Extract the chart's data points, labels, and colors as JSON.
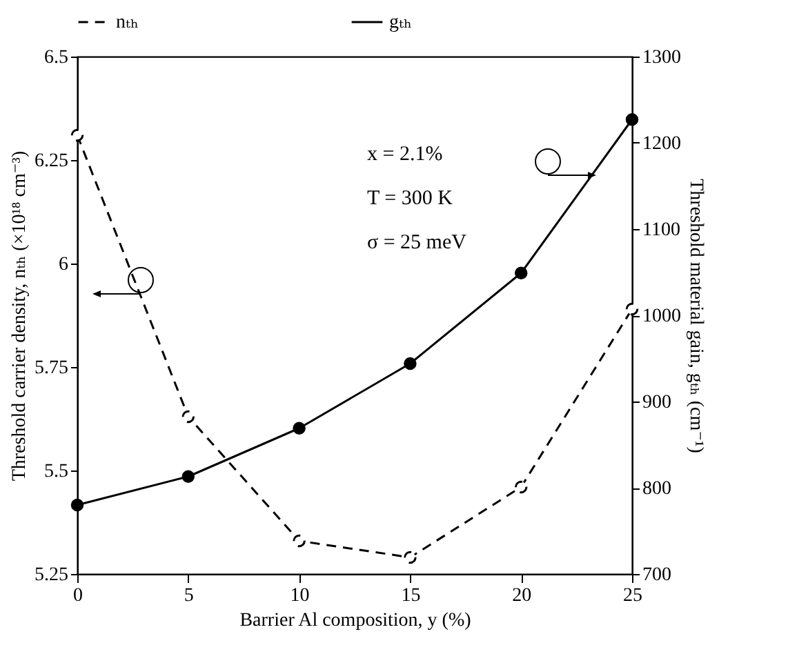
{
  "chart_data": {
    "type": "line",
    "xlabel": "Barrier Al composition, y (%)",
    "ylabel": "Threshold carrier density, nₜₕ (×10¹⁸ cm⁻³)",
    "y2label": "Threshold material gain, gₜₕ (cm⁻¹)",
    "x": [
      0,
      5,
      10,
      15,
      20,
      25
    ],
    "series": [
      {
        "name": "nₜₕ",
        "color": "#000000",
        "line_style": "dashed",
        "values": [
          6.31,
          5.63,
          5.33,
          5.29,
          5.46,
          5.89
        ]
      },
      {
        "name": "gₜₕ",
        "color": "#000000",
        "line_style": "solid",
        "axis": "y2",
        "values": [
          780,
          813,
          869,
          944,
          1049,
          1227
        ]
      }
    ],
    "xlim": [
      0,
      25
    ],
    "xticks": [
      0,
      5,
      10,
      15,
      20,
      25
    ],
    "ylim": [
      5.25,
      6.5
    ],
    "yticks": [
      5.25,
      5.5,
      5.75,
      6,
      6.25,
      6.5
    ],
    "y2lim": [
      700,
      1300
    ],
    "y2ticks": [
      700,
      800,
      900,
      1000,
      1100,
      1200,
      1300
    ],
    "annotations": [
      "x = 2.1%",
      "T = 300 K",
      "σ = 25 meV"
    ],
    "marker": "circle",
    "grid": false,
    "legend": "top"
  }
}
